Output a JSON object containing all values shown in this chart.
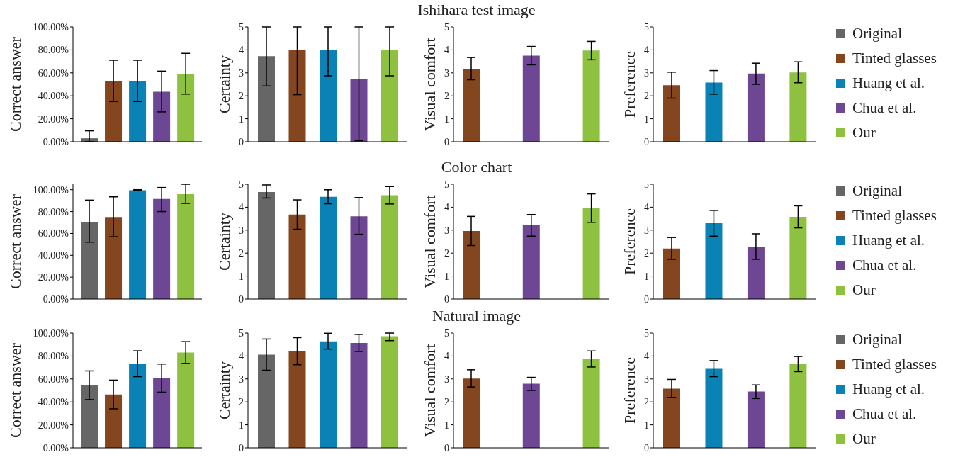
{
  "chart_data": [
    {
      "type": "bar",
      "ylabel": "Correct answer",
      "categories": [
        null
      ],
      "legend": "right",
      "ylim": [
        0,
        100
      ],
      "yticks": [
        {
          "value": 0,
          "label": "0.00%"
        },
        {
          "value": 20,
          "label": "20.00%"
        },
        {
          "value": 40,
          "label": "40.00%"
        },
        {
          "value": 60,
          "label": "60.00%"
        },
        {
          "value": 80,
          "label": "80.00%"
        },
        {
          "value": 100,
          "label": "100.00%"
        }
      ],
      "series": [
        {
          "name": "Original",
          "color": "#666666",
          "values": [
            3
          ],
          "errors": [
            [
              0,
              9.5
            ]
          ]
        },
        {
          "name": "Tinted glasses",
          "color": "#84461e",
          "values": [
            53
          ],
          "errors": [
            [
              35,
              71
            ]
          ]
        },
        {
          "name": "Huang et al.",
          "color": "#0a82b6",
          "values": [
            53
          ],
          "errors": [
            [
              35,
              71
            ]
          ]
        },
        {
          "name": "Chua et al.",
          "color": "#6d4793",
          "values": [
            43.5
          ],
          "errors": [
            [
              26,
              61.5
            ]
          ]
        },
        {
          "name": "Our",
          "color": "#8dc13f",
          "values": [
            59
          ],
          "errors": [
            [
              41.5,
              77
            ]
          ]
        }
      ]
    },
    {
      "type": "bar",
      "ylabel": "Certainty",
      "categories": [
        null
      ],
      "ylim": [
        0,
        5
      ],
      "yticks": [
        0,
        1,
        2,
        3,
        4,
        5
      ],
      "series": [
        {
          "color": "#666666",
          "values": [
            3.73
          ],
          "errors": [
            [
              2.43,
              5
            ]
          ]
        },
        {
          "color": "#84461e",
          "values": [
            4
          ],
          "errors": [
            [
              2.05,
              5
            ]
          ]
        },
        {
          "color": "#0a82b6",
          "values": [
            4
          ],
          "errors": [
            [
              2.87,
              5
            ]
          ]
        },
        {
          "color": "#6d4793",
          "values": [
            2.75
          ],
          "errors": [
            [
              0.05,
              5
            ]
          ]
        },
        {
          "color": "#8dc13f",
          "values": [
            4
          ],
          "errors": [
            [
              2.87,
              5
            ]
          ]
        }
      ]
    },
    {
      "type": "bar",
      "title": "Ishihara test image",
      "ylabel": "Visual comfort",
      "categories": [
        null
      ],
      "ylim": [
        0,
        5
      ],
      "yticks": [
        0,
        1,
        2,
        3,
        4,
        5
      ],
      "series": [
        {
          "color": "#84461e",
          "values": [
            3.18
          ],
          "errors": [
            [
              2.7,
              3.67
            ]
          ]
        },
        {
          "color": "#6d4793",
          "values": [
            3.75
          ],
          "errors": [
            [
              3.35,
              4.15
            ]
          ]
        },
        {
          "color": "#8dc13f",
          "values": [
            3.97
          ],
          "errors": [
            [
              3.57,
              4.37
            ]
          ]
        }
      ]
    },
    {
      "type": "bar",
      "ylabel": "Preference",
      "categories": [
        null
      ],
      "ylim": [
        0,
        5
      ],
      "yticks": [
        0,
        1,
        2,
        3,
        4,
        5
      ],
      "series": [
        {
          "color": "#84461e",
          "values": [
            2.46
          ],
          "errors": [
            [
              1.9,
              3.03
            ]
          ]
        },
        {
          "color": "#0a82b6",
          "values": [
            2.58
          ],
          "errors": [
            [
              2.07,
              3.1
            ]
          ]
        },
        {
          "color": "#6d4793",
          "values": [
            2.97
          ],
          "errors": [
            [
              2.5,
              3.42
            ]
          ]
        },
        {
          "color": "#8dc13f",
          "values": [
            3.02
          ],
          "errors": [
            [
              2.57,
              3.48
            ]
          ]
        }
      ]
    },
    {
      "type": "bar",
      "ylabel": "Correct answer",
      "categories": [
        null
      ],
      "legend": "right",
      "ylim": [
        0,
        105
      ],
      "yticks": [
        {
          "value": 0,
          "label": "0.00%"
        },
        {
          "value": 20,
          "label": "20.00%"
        },
        {
          "value": 40,
          "label": "40.00%"
        },
        {
          "value": 60,
          "label": "60.00%"
        },
        {
          "value": 80,
          "label": "80.00%"
        },
        {
          "value": 100,
          "label": "100.00%"
        }
      ],
      "series": [
        {
          "name": "Original",
          "color": "#666666",
          "values": [
            70.5
          ],
          "errors": [
            [
              52,
              90.5
            ]
          ]
        },
        {
          "name": "Tinted glasses",
          "color": "#84461e",
          "values": [
            75
          ],
          "errors": [
            [
              57,
              93.5
            ]
          ]
        },
        {
          "name": "Huang et al.",
          "color": "#0a82b6",
          "values": [
            99.5
          ],
          "errors": [
            [
              99.3,
              100
            ]
          ]
        },
        {
          "name": "Chua et al.",
          "color": "#6d4793",
          "values": [
            91.5
          ],
          "errors": [
            [
              80,
              102
            ]
          ]
        },
        {
          "name": "Our",
          "color": "#8dc13f",
          "values": [
            96
          ],
          "errors": [
            [
              87.5,
              105
            ]
          ]
        }
      ]
    },
    {
      "type": "bar",
      "ylabel": "Certainty",
      "categories": [
        null
      ],
      "ylim": [
        0,
        5
      ],
      "yticks": [
        0,
        1,
        2,
        3,
        4,
        5
      ],
      "series": [
        {
          "color": "#666666",
          "values": [
            4.66
          ],
          "errors": [
            [
              4.4,
              4.97
            ]
          ]
        },
        {
          "color": "#84461e",
          "values": [
            3.68
          ],
          "errors": [
            [
              3.04,
              4.32
            ]
          ]
        },
        {
          "color": "#0a82b6",
          "values": [
            4.45
          ],
          "errors": [
            [
              4.15,
              4.76
            ]
          ]
        },
        {
          "color": "#6d4793",
          "values": [
            3.6
          ],
          "errors": [
            [
              2.82,
              4.42
            ]
          ]
        },
        {
          "color": "#8dc13f",
          "values": [
            4.52
          ],
          "errors": [
            [
              4.14,
              4.9
            ]
          ]
        }
      ]
    },
    {
      "type": "bar",
      "title": "Color chart",
      "ylabel": "Visual comfort",
      "categories": [
        null
      ],
      "ylim": [
        0,
        5
      ],
      "yticks": [
        0,
        1,
        2,
        3,
        4,
        5
      ],
      "series": [
        {
          "color": "#84461e",
          "values": [
            2.96
          ],
          "errors": [
            [
              2.33,
              3.6
            ]
          ]
        },
        {
          "color": "#6d4793",
          "values": [
            3.21
          ],
          "errors": [
            [
              2.74,
              3.68
            ]
          ]
        },
        {
          "color": "#8dc13f",
          "values": [
            3.95
          ],
          "errors": [
            [
              3.34,
              4.58
            ]
          ]
        }
      ]
    },
    {
      "type": "bar",
      "ylabel": "Preference",
      "categories": [
        null
      ],
      "ylim": [
        0,
        5
      ],
      "yticks": [
        0,
        1,
        2,
        3,
        4,
        5
      ],
      "series": [
        {
          "color": "#84461e",
          "values": [
            2.2
          ],
          "errors": [
            [
              1.73,
              2.68
            ]
          ]
        },
        {
          "color": "#0a82b6",
          "values": [
            3.3
          ],
          "errors": [
            [
              2.74,
              3.86
            ]
          ]
        },
        {
          "color": "#6d4793",
          "values": [
            2.28
          ],
          "errors": [
            [
              1.73,
              2.84
            ]
          ]
        },
        {
          "color": "#8dc13f",
          "values": [
            3.58
          ],
          "errors": [
            [
              3.1,
              4.06
            ]
          ]
        }
      ]
    },
    {
      "type": "bar",
      "ylabel": "Correct answer",
      "categories": [
        null
      ],
      "legend": "right",
      "ylim": [
        0,
        100
      ],
      "yticks": [
        {
          "value": 0,
          "label": "0.00%"
        },
        {
          "value": 20,
          "label": "20.00%"
        },
        {
          "value": 40,
          "label": "40.00%"
        },
        {
          "value": 60,
          "label": "60.00%"
        },
        {
          "value": 80,
          "label": "80.00%"
        },
        {
          "value": 100,
          "label": "100.00%"
        }
      ],
      "series": [
        {
          "name": "Original",
          "color": "#666666",
          "values": [
            54.5
          ],
          "errors": [
            [
              42,
              67
            ]
          ]
        },
        {
          "name": "Tinted glasses",
          "color": "#84461e",
          "values": [
            46.5
          ],
          "errors": [
            [
              34,
              59
            ]
          ]
        },
        {
          "name": "Huang et al.",
          "color": "#0a82b6",
          "values": [
            73.5
          ],
          "errors": [
            [
              62,
              84.5
            ]
          ]
        },
        {
          "name": "Chua et al.",
          "color": "#6d4793",
          "values": [
            61
          ],
          "errors": [
            [
              48.5,
              73
            ]
          ]
        },
        {
          "name": "Our",
          "color": "#8dc13f",
          "values": [
            83
          ],
          "errors": [
            [
              73.5,
              92.5
            ]
          ]
        }
      ]
    },
    {
      "type": "bar",
      "ylabel": "Certainty",
      "categories": [
        null
      ],
      "ylim": [
        0,
        5
      ],
      "yticks": [
        0,
        1,
        2,
        3,
        4,
        5
      ],
      "series": [
        {
          "color": "#666666",
          "values": [
            4.06
          ],
          "errors": [
            [
              3.38,
              4.74
            ]
          ]
        },
        {
          "color": "#84461e",
          "values": [
            4.22
          ],
          "errors": [
            [
              3.62,
              4.8
            ]
          ]
        },
        {
          "color": "#0a82b6",
          "values": [
            4.64
          ],
          "errors": [
            [
              4.3,
              4.99
            ]
          ]
        },
        {
          "color": "#6d4793",
          "values": [
            4.57
          ],
          "errors": [
            [
              4.2,
              4.94
            ]
          ]
        },
        {
          "color": "#8dc13f",
          "values": [
            4.86
          ],
          "errors": [
            [
              4.67,
              5
            ]
          ]
        }
      ]
    },
    {
      "type": "bar",
      "title": "Natural image",
      "ylabel": "Visual comfort",
      "categories": [
        null
      ],
      "ylim": [
        0,
        5
      ],
      "yticks": [
        0,
        1,
        2,
        3,
        4,
        5
      ],
      "series": [
        {
          "color": "#84461e",
          "values": [
            3.02
          ],
          "errors": [
            [
              2.65,
              3.4
            ]
          ]
        },
        {
          "color": "#6d4793",
          "values": [
            2.79
          ],
          "errors": [
            [
              2.5,
              3.07
            ]
          ]
        },
        {
          "color": "#8dc13f",
          "values": [
            3.86
          ],
          "errors": [
            [
              3.52,
              4.22
            ]
          ]
        }
      ]
    },
    {
      "type": "bar",
      "ylabel": "Preference",
      "categories": [
        null
      ],
      "ylim": [
        0,
        5
      ],
      "yticks": [
        0,
        1,
        2,
        3,
        4,
        5
      ],
      "series": [
        {
          "color": "#84461e",
          "values": [
            2.58
          ],
          "errors": [
            [
              2.2,
              2.98
            ]
          ]
        },
        {
          "color": "#0a82b6",
          "values": [
            3.44
          ],
          "errors": [
            [
              3.1,
              3.8
            ]
          ]
        },
        {
          "color": "#6d4793",
          "values": [
            2.45
          ],
          "errors": [
            [
              2.15,
              2.74
            ]
          ]
        },
        {
          "color": "#8dc13f",
          "values": [
            3.65
          ],
          "errors": [
            [
              3.32,
              3.98
            ]
          ]
        }
      ]
    }
  ]
}
